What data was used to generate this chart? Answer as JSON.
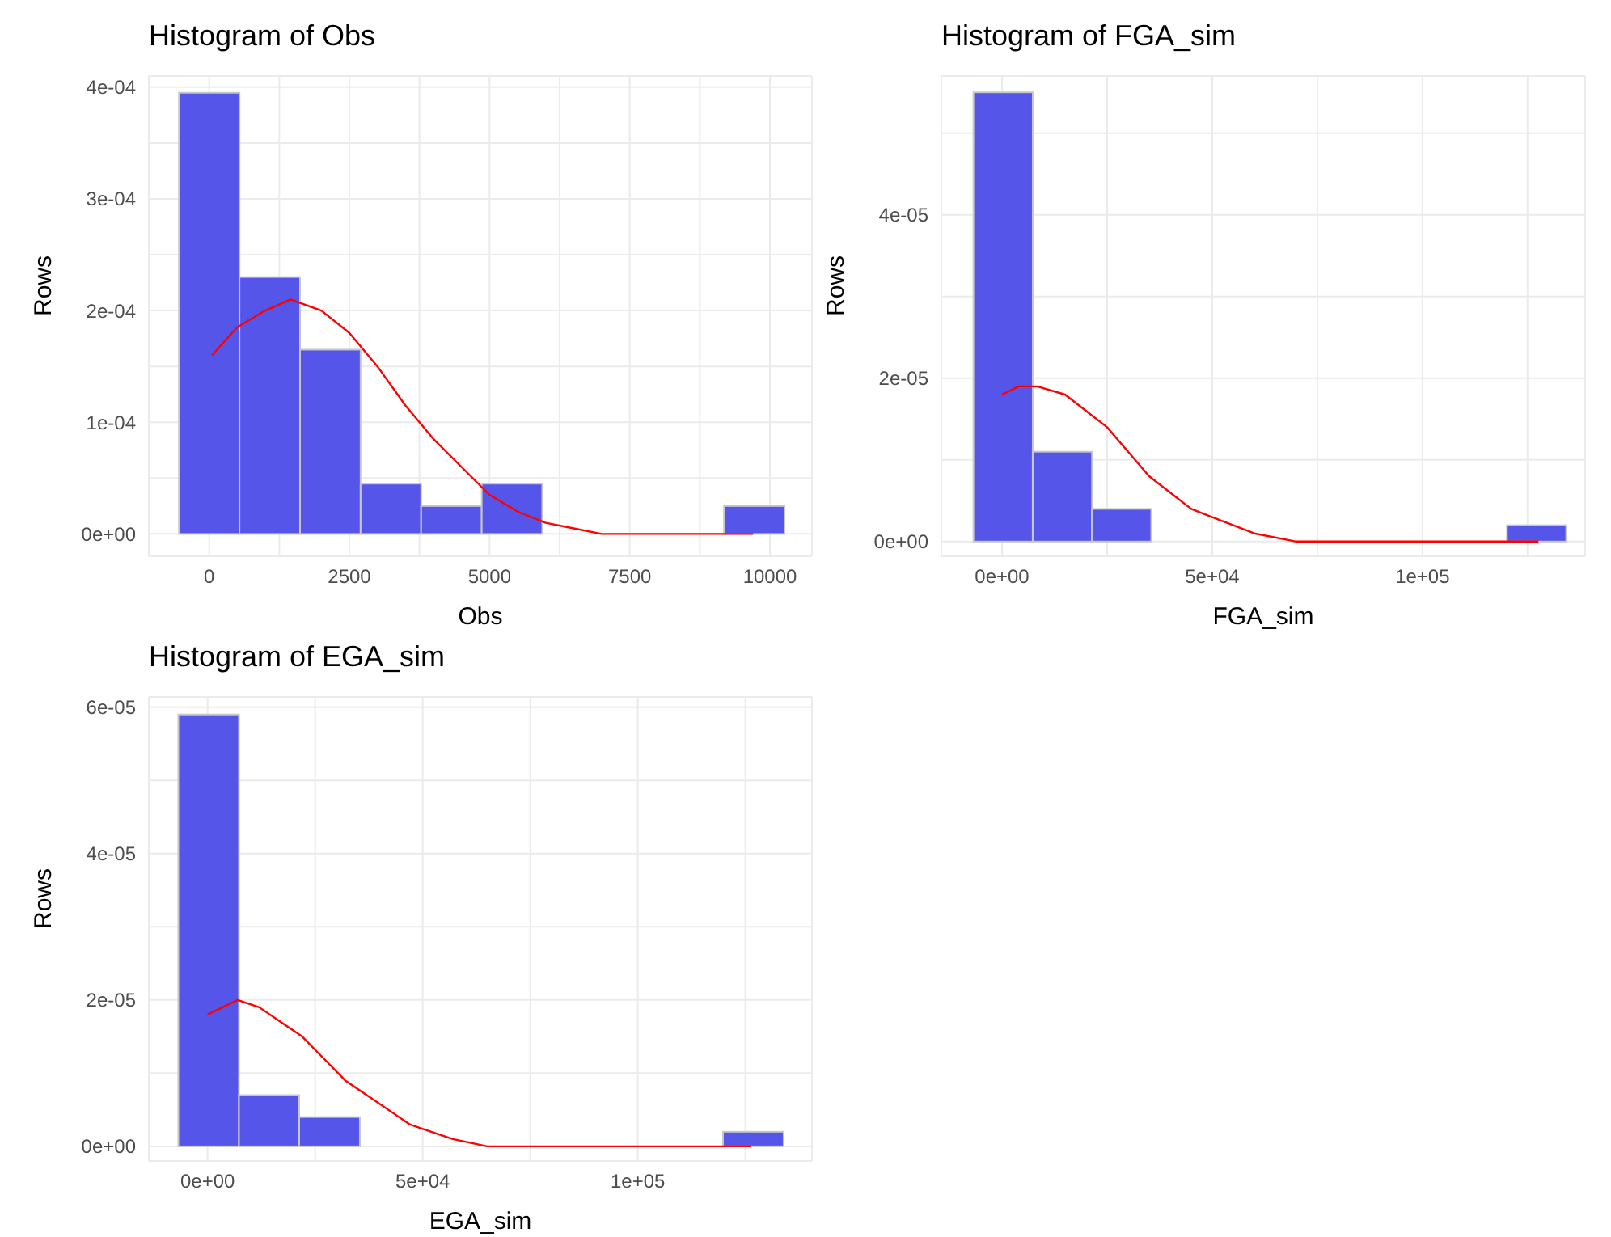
{
  "chart_data": [
    {
      "type": "histogram",
      "title": "Histogram of Obs",
      "xlabel": "Obs",
      "ylabel": "Rows",
      "color": "#5555ea",
      "grid": true,
      "bins": [
        -540,
        540,
        1620,
        2700,
        3780,
        4860,
        5940,
        9180,
        10260
      ],
      "values": [
        0.000395,
        0.00023,
        0.000165,
        4.5e-05,
        2.5e-05,
        4.5e-05,
        0,
        2.5e-05
      ],
      "xlim": [
        -1077,
        10750
      ],
      "xticks": [
        0,
        {
          "value": 1250,
          "label": null
        },
        2500,
        {
          "value": 3750,
          "label": null
        },
        5000,
        {
          "value": 6250,
          "label": null
        },
        7500,
        {
          "value": 8750,
          "label": null
        },
        10000
      ],
      "ylim": [
        -2e-05,
        0.00041
      ],
      "yticks": [
        {
          "value": 0,
          "label": "0e+00"
        },
        {
          "value": 5e-05,
          "label": null
        },
        {
          "value": 0.0001,
          "label": "1e-04"
        },
        {
          "value": 0.00015,
          "label": null
        },
        {
          "value": 0.0002,
          "label": "2e-04"
        },
        {
          "value": 0.00025,
          "label": null
        },
        {
          "value": 0.0003,
          "label": "3e-04"
        },
        {
          "value": 0.00035,
          "label": null
        },
        {
          "value": 0.0004,
          "label": "4e-04"
        }
      ],
      "series": [
        {
          "type": "line",
          "color": "#ff0000",
          "x": [
            50,
            500,
            1000,
            1450,
            2000,
            2500,
            3000,
            3500,
            4000,
            4500,
            5000,
            5500,
            6000,
            6500,
            7000,
            7500,
            8000,
            9000,
            9700
          ],
          "values": [
            0.00016,
            0.000185,
            0.0002,
            0.00021,
            0.0002,
            0.00018,
            0.00015,
            0.000115,
            8.5e-05,
            6e-05,
            3.5e-05,
            2e-05,
            1e-05,
            5e-06,
            0,
            0,
            0,
            0,
            0
          ]
        }
      ]
    },
    {
      "type": "histogram",
      "title": "Histogram of FGA_sim",
      "xlabel": "FGA_sim",
      "ylabel": "Rows",
      "color": "#5555ea",
      "grid": true,
      "bins": [
        -6800,
        7300,
        21400,
        35500,
        120100,
        134200
      ],
      "values": [
        5.5e-05,
        1.1e-05,
        4e-06,
        0,
        2e-06
      ],
      "xlim": [
        -14430,
        138700
      ],
      "xticks": [
        {
          "value": 0,
          "label": "0e+00"
        },
        {
          "value": 25000,
          "label": null
        },
        {
          "value": 50000,
          "label": "5e+04"
        },
        {
          "value": 75000,
          "label": null
        },
        {
          "value": 100000,
          "label": "1e+05"
        },
        {
          "value": 125000,
          "label": null
        }
      ],
      "ylim": [
        -1.8e-06,
        5.7e-05
      ],
      "yticks": [
        {
          "value": 0,
          "label": "0e+00"
        },
        {
          "value": 1e-05,
          "label": null
        },
        {
          "value": 2e-05,
          "label": "2e-05"
        },
        {
          "value": 3e-05,
          "label": null
        },
        {
          "value": 4e-05,
          "label": "4e-05"
        },
        {
          "value": 5e-05,
          "label": null
        }
      ],
      "series": [
        {
          "type": "line",
          "color": "#ff0000",
          "x": [
            0,
            4000,
            8350,
            15000,
            20000,
            25000,
            30000,
            35000,
            40000,
            45000,
            50000,
            55000,
            60000,
            70000,
            80000,
            100000,
            127600
          ],
          "values": [
            1.8e-05,
            1.9e-05,
            1.9e-05,
            1.8e-05,
            1.6e-05,
            1.4e-05,
            1.1e-05,
            8e-06,
            6e-06,
            4e-06,
            3e-06,
            2e-06,
            1e-06,
            0,
            0,
            0,
            0
          ]
        }
      ]
    },
    {
      "type": "histogram",
      "title": "Histogram of EGA_sim",
      "xlabel": "EGA_sim",
      "ylabel": "Rows",
      "color": "#5555ea",
      "grid": true,
      "bins": [
        -6800,
        7300,
        21300,
        35400,
        119800,
        133900
      ],
      "values": [
        5.9e-05,
        7e-06,
        4e-06,
        0,
        2e-06
      ],
      "xlim": [
        -13660,
        140480
      ],
      "xticks": [
        {
          "value": 0,
          "label": "0e+00"
        },
        {
          "value": 25000,
          "label": null
        },
        {
          "value": 50000,
          "label": "5e+04"
        },
        {
          "value": 75000,
          "label": null
        },
        {
          "value": 100000,
          "label": "1e+05"
        },
        {
          "value": 125000,
          "label": null
        }
      ],
      "ylim": [
        -2e-06,
        6.14e-05
      ],
      "yticks": [
        {
          "value": 0,
          "label": "0e+00"
        },
        {
          "value": 1e-05,
          "label": null
        },
        {
          "value": 2e-05,
          "label": "2e-05"
        },
        {
          "value": 3e-05,
          "label": null
        },
        {
          "value": 4e-05,
          "label": "4e-05"
        },
        {
          "value": 5e-05,
          "label": null
        },
        {
          "value": 6e-05,
          "label": "6e-05"
        }
      ],
      "series": [
        {
          "type": "line",
          "color": "#ff0000",
          "x": [
            0,
            3500,
            7000,
            12000,
            17000,
            22000,
            27000,
            32000,
            37000,
            42000,
            47000,
            52000,
            57000,
            65000,
            75000,
            90000,
            126400
          ],
          "values": [
            1.8e-05,
            1.9e-05,
            2e-05,
            1.9e-05,
            1.7e-05,
            1.5e-05,
            1.2e-05,
            9e-06,
            7e-06,
            5e-06,
            3e-06,
            2e-06,
            1e-06,
            0,
            0,
            0,
            0
          ]
        }
      ]
    }
  ]
}
